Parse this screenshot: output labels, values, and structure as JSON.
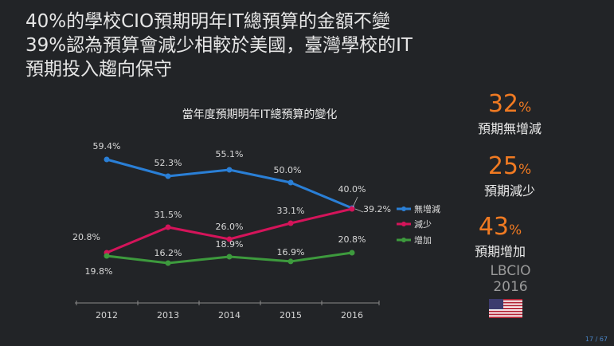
{
  "title_lines": [
    "40%的學校CIO預期明年IT總預算的金額不變",
    "39%認為預算會減少相較於美國，臺灣學校的IT",
    "預期投入趨向保守"
  ],
  "stats": [
    {
      "value": "32",
      "unit": "%",
      "label": "預期無增減"
    },
    {
      "value": "25",
      "unit": "%",
      "label": "預期減少"
    },
    {
      "value": "43",
      "unit": "%",
      "label": "預期增加"
    }
  ],
  "source": [
    "LBCIO",
    "2016"
  ],
  "flag": "us-flag-icon",
  "page": "17 / 67",
  "colors": {
    "blue": "#2a7fd6",
    "red": "#d4145a",
    "green": "#3d9a3d",
    "accent": "#f07a22"
  },
  "chart_data": {
    "type": "line",
    "title": "當年度預期明年IT總預算的變化",
    "x": [
      "2012",
      "2013",
      "2014",
      "2015",
      "2016"
    ],
    "ylim": [
      0,
      70
    ],
    "series": [
      {
        "name": "無增減",
        "color": "#2a7fd6",
        "values": [
          59.4,
          52.3,
          55.1,
          50.0,
          40.0
        ],
        "labels": [
          "59.4%",
          "52.3%",
          "55.1%",
          "50.0%",
          "40.0%"
        ]
      },
      {
        "name": "減少",
        "color": "#d4145a",
        "values": [
          20.8,
          31.5,
          26.0,
          33.1,
          39.2
        ],
        "labels": [
          "20.8%",
          "31.5%",
          "26.0%",
          "33.1%",
          "39.2%"
        ]
      },
      {
        "name": "增加",
        "color": "#3d9a3d",
        "values": [
          19.8,
          16.2,
          18.9,
          16.9,
          20.8
        ],
        "labels": [
          "19.8%",
          "16.2%",
          "18.9%",
          "16.9%",
          "20.8%"
        ]
      }
    ],
    "legend_position": "right"
  }
}
